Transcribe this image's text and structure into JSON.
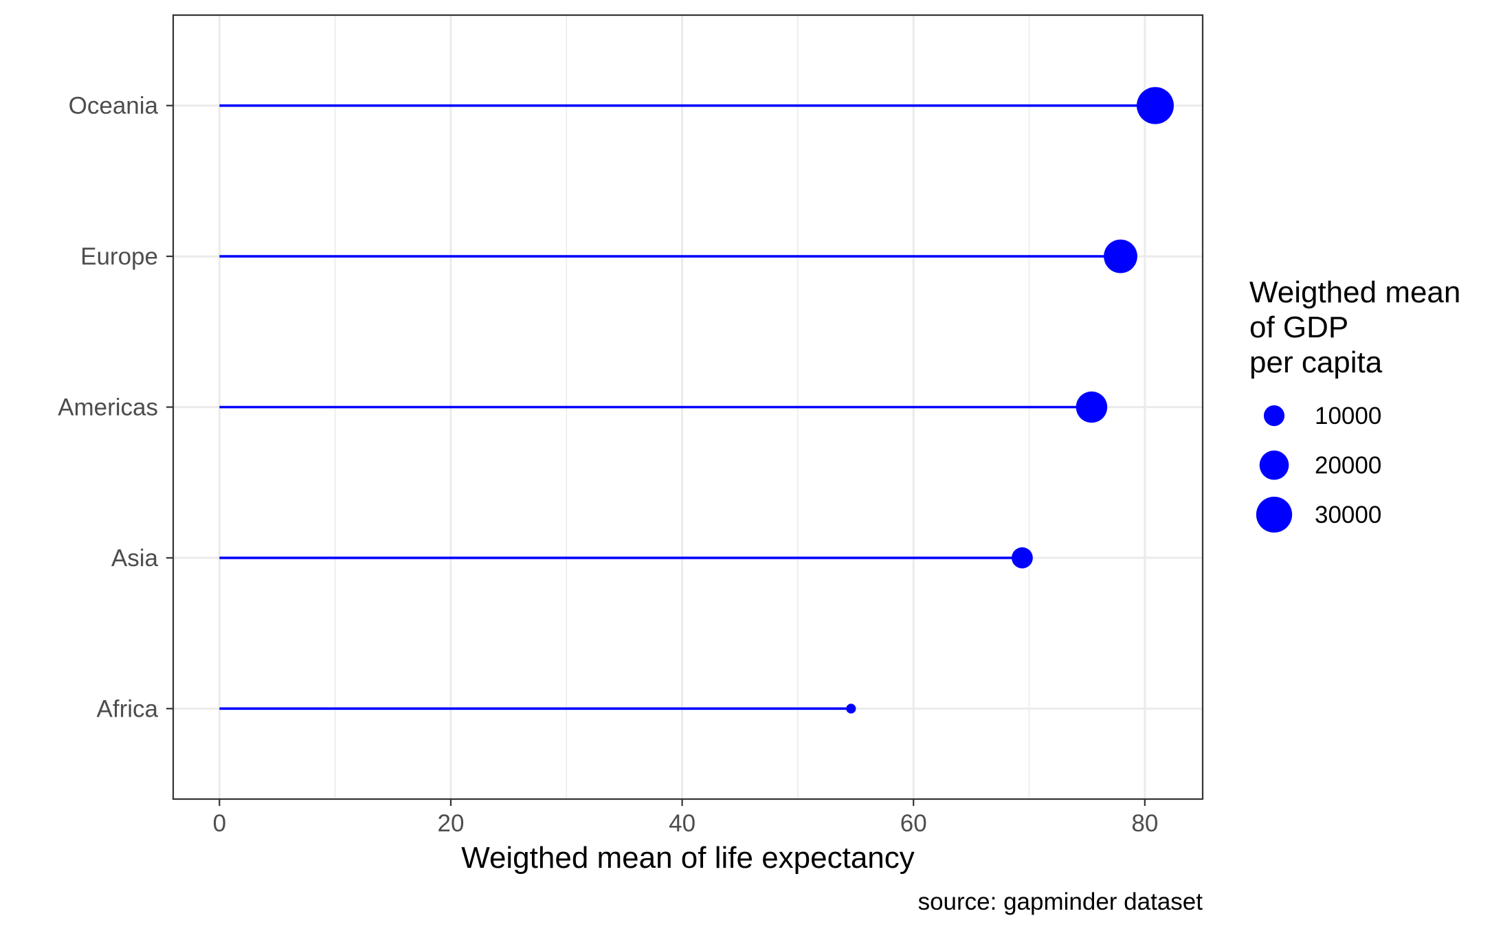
{
  "chart_data": {
    "type": "lollipop",
    "categories": [
      "Africa",
      "Asia",
      "Americas",
      "Europe",
      "Oceania"
    ],
    "values": [
      54.6,
      69.4,
      75.4,
      77.9,
      80.9
    ],
    "sizes": [
      2200,
      10400,
      22700,
      26200,
      32000
    ],
    "x_ticks": [
      0,
      20,
      40,
      60,
      80
    ],
    "xlim": [
      -4,
      85
    ],
    "xlabel": "Weigthed mean of life expectancy",
    "ylabel": "",
    "caption": "source: gapminder dataset",
    "grid": true,
    "colors": {
      "series": "#0000ff",
      "grid": "#ebebeb",
      "panel_border": "#333333",
      "tick_text": "#4d4d4d"
    },
    "legend": {
      "title": [
        "Weigthed mean",
        "of GDP",
        "per capita"
      ],
      "placement": "right",
      "entries": [
        {
          "label": "10000",
          "size": 10000
        },
        {
          "label": "20000",
          "size": 20000
        },
        {
          "label": "30000",
          "size": 30000
        }
      ]
    }
  }
}
